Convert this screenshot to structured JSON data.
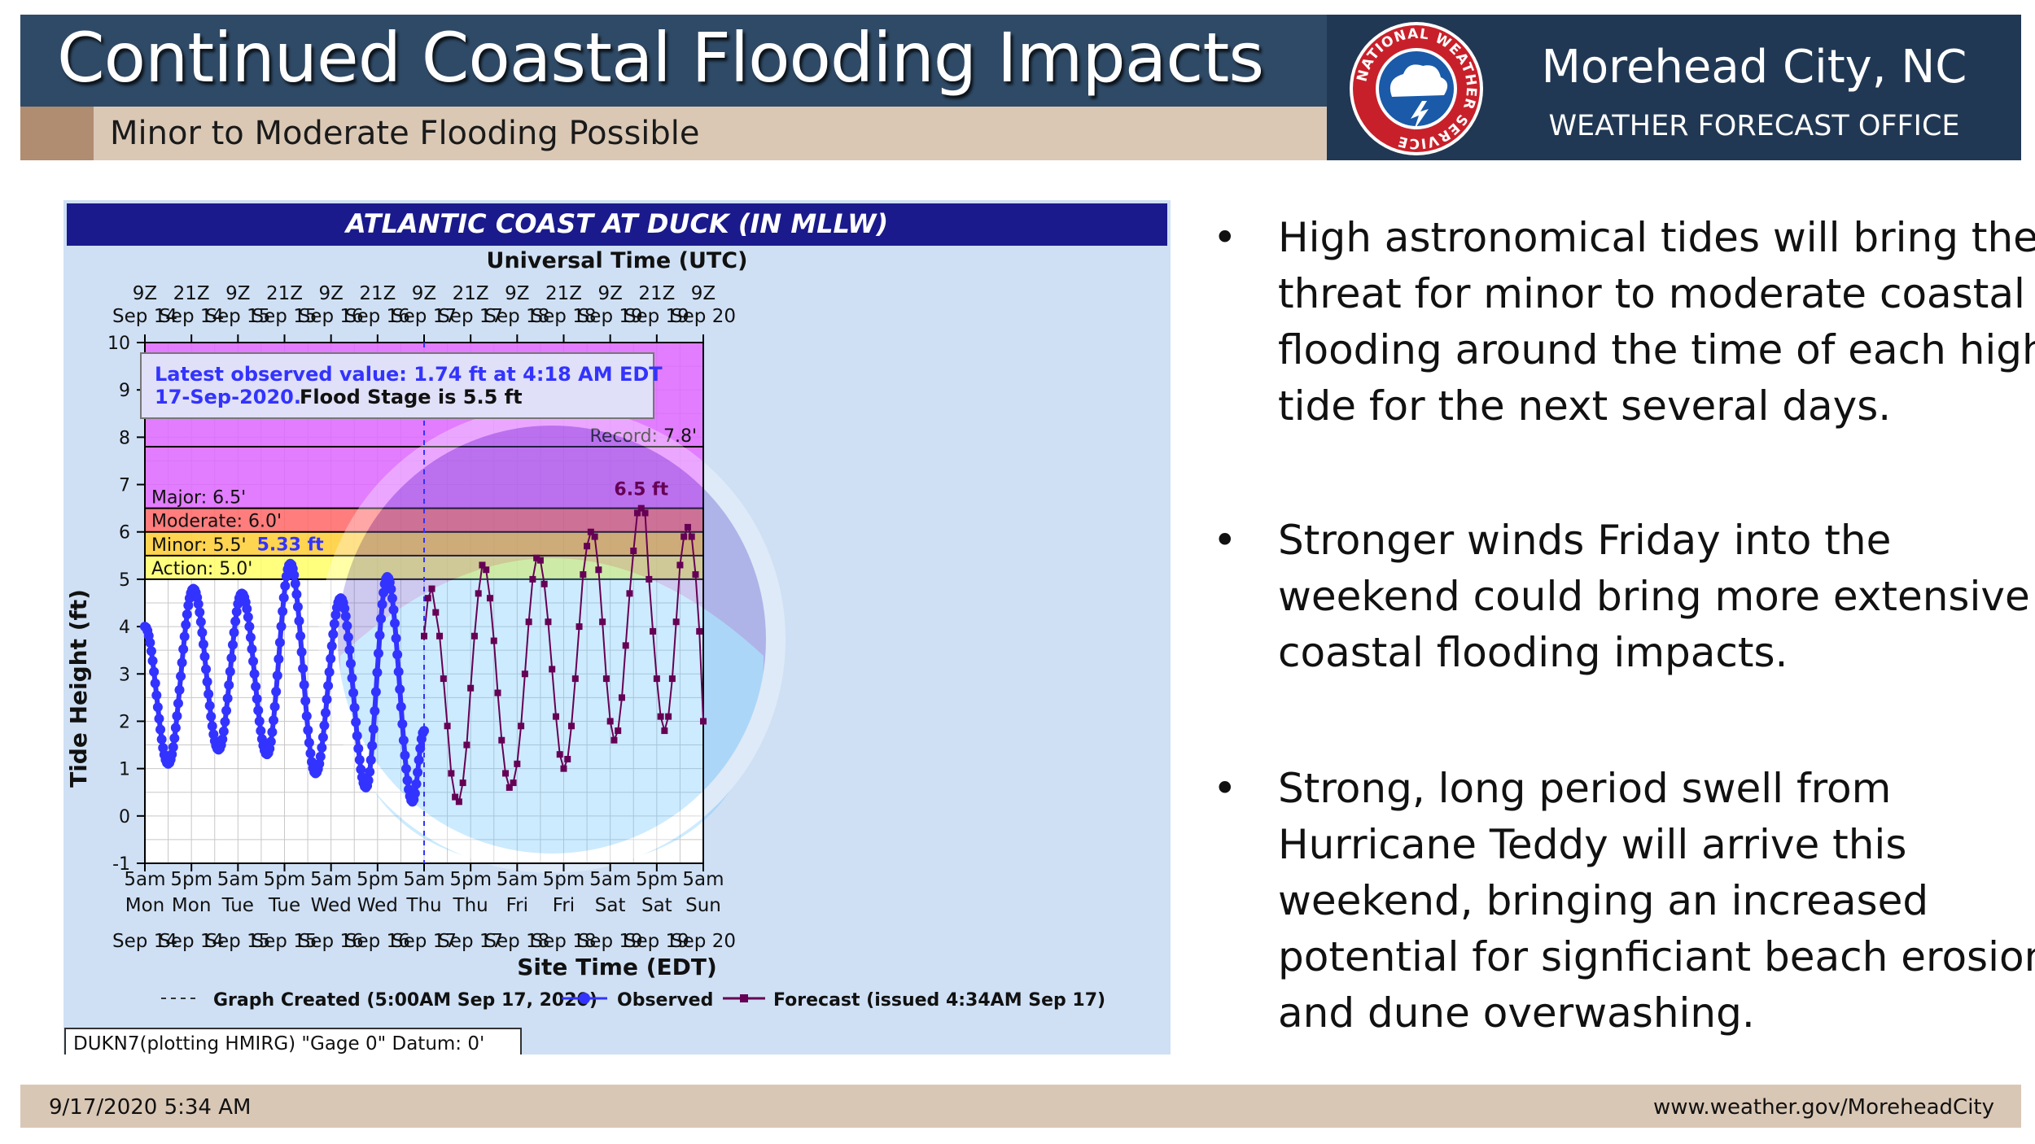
{
  "header": {
    "title": "Continued Coastal Flooding Impacts",
    "subtitle": "Minor to Moderate Flooding Possible",
    "office_city": "Morehead City, NC",
    "office_name": "WEATHER FORECAST OFFICE",
    "logo_text": "NATIONAL WEATHER SERVICE"
  },
  "chart_data": {
    "type": "line",
    "title": "ATLANTIC COAST AT DUCK (IN MLLW)",
    "top_axis_title": "Universal Time (UTC)",
    "top_ticks": [
      [
        "9Z",
        "Sep 14"
      ],
      [
        "21Z",
        "Sep 14"
      ],
      [
        "9Z",
        "Sep 15"
      ],
      [
        "21Z",
        "Sep 15"
      ],
      [
        "9Z",
        "Sep 16"
      ],
      [
        "21Z",
        "Sep 16"
      ],
      [
        "9Z",
        "Sep 17"
      ],
      [
        "21Z",
        "Sep 17"
      ],
      [
        "9Z",
        "Sep 18"
      ],
      [
        "21Z",
        "Sep 18"
      ],
      [
        "9Z",
        "Sep 19"
      ],
      [
        "21Z",
        "Sep 19"
      ],
      [
        "9Z",
        "Sep 20"
      ]
    ],
    "xlabel": "Site Time (EDT)",
    "bottom_ticks": [
      [
        "5am",
        "Mon",
        "Sep 14"
      ],
      [
        "5pm",
        "Mon",
        "Sep 14"
      ],
      [
        "5am",
        "Tue",
        "Sep 15"
      ],
      [
        "5pm",
        "Tue",
        "Sep 15"
      ],
      [
        "5am",
        "Wed",
        "Sep 16"
      ],
      [
        "5pm",
        "Wed",
        "Sep 16"
      ],
      [
        "5am",
        "Thu",
        "Sep 17"
      ],
      [
        "5pm",
        "Thu",
        "Sep 17"
      ],
      [
        "5am",
        "Fri",
        "Sep 18"
      ],
      [
        "5pm",
        "Fri",
        "Sep 18"
      ],
      [
        "5am",
        "Sat",
        "Sep 19"
      ],
      [
        "5pm",
        "Sat",
        "Sep 19"
      ],
      [
        "5am",
        "Sun",
        "Sep 20"
      ]
    ],
    "ylabel": "Tide Height (ft)",
    "ylim": [
      -1,
      10
    ],
    "yticks": [
      -1,
      0,
      1,
      2,
      3,
      4,
      5,
      6,
      7,
      8,
      9,
      10
    ],
    "x_unit": "hours after 5am EDT Mon Sep 14",
    "xlim": [
      0,
      144
    ],
    "flood_stages": [
      {
        "label": "Action: 5.0'",
        "value": 5.0,
        "color": "#ffff66"
      },
      {
        "label": "Minor: 5.5'",
        "value": 5.5,
        "color": "#ffcc33"
      },
      {
        "label": "Moderate: 6.0'",
        "value": 6.0,
        "color": "#ff6666"
      },
      {
        "label": "Major: 6.5'",
        "value": 6.5,
        "color": "#dd66ff"
      }
    ],
    "record": {
      "label": "Record: 7.8'",
      "value": 7.8
    },
    "observed_extrema": [
      [
        0,
        4.0
      ],
      [
        6,
        1.1
      ],
      [
        12.5,
        4.8
      ],
      [
        19,
        1.4
      ],
      [
        25,
        4.7
      ],
      [
        31.5,
        1.3
      ],
      [
        37.5,
        5.33
      ],
      [
        44,
        0.9
      ],
      [
        50.5,
        4.6
      ],
      [
        57,
        0.6
      ],
      [
        62.5,
        5.05
      ],
      [
        69,
        0.3
      ],
      [
        72,
        1.8
      ]
    ],
    "forecast_points": [
      [
        72,
        3.8
      ],
      [
        73,
        4.6
      ],
      [
        74,
        4.8
      ],
      [
        75,
        4.3
      ],
      [
        76,
        3.8
      ],
      [
        77,
        2.9
      ],
      [
        78,
        1.9
      ],
      [
        79,
        0.9
      ],
      [
        80,
        0.4
      ],
      [
        81,
        0.3
      ],
      [
        82,
        0.7
      ],
      [
        83,
        1.5
      ],
      [
        84,
        2.7
      ],
      [
        85,
        3.8
      ],
      [
        86,
        4.7
      ],
      [
        87,
        5.3
      ],
      [
        88,
        5.2
      ],
      [
        89,
        4.6
      ],
      [
        90,
        3.7
      ],
      [
        91,
        2.6
      ],
      [
        92,
        1.6
      ],
      [
        93,
        0.9
      ],
      [
        94,
        0.6
      ],
      [
        95,
        0.7
      ],
      [
        96,
        1.1
      ],
      [
        97,
        1.9
      ],
      [
        98,
        3.0
      ],
      [
        99,
        4.1
      ],
      [
        100,
        5.0
      ],
      [
        101,
        5.45
      ],
      [
        102,
        5.4
      ],
      [
        103,
        4.9
      ],
      [
        104,
        4.1
      ],
      [
        105,
        3.1
      ],
      [
        106,
        2.1
      ],
      [
        107,
        1.3
      ],
      [
        108,
        1.0
      ],
      [
        109,
        1.2
      ],
      [
        110,
        1.9
      ],
      [
        111,
        2.9
      ],
      [
        112,
        4.0
      ],
      [
        113,
        5.1
      ],
      [
        114,
        5.7
      ],
      [
        115,
        6.0
      ],
      [
        116,
        5.9
      ],
      [
        117,
        5.2
      ],
      [
        118,
        4.1
      ],
      [
        119,
        2.9
      ],
      [
        120,
        2.0
      ],
      [
        121,
        1.6
      ],
      [
        122,
        1.8
      ],
      [
        123,
        2.5
      ],
      [
        124,
        3.6
      ],
      [
        125,
        4.7
      ],
      [
        126,
        5.6
      ],
      [
        127,
        6.4
      ],
      [
        128,
        6.5
      ],
      [
        129,
        6.4
      ],
      [
        130,
        5.0
      ],
      [
        131,
        3.9
      ],
      [
        132,
        2.9
      ],
      [
        133,
        2.1
      ],
      [
        134,
        1.8
      ],
      [
        135,
        2.1
      ],
      [
        136,
        2.9
      ],
      [
        137,
        4.1
      ],
      [
        138,
        5.3
      ],
      [
        139,
        5.9
      ],
      [
        140,
        6.1
      ],
      [
        141,
        5.9
      ],
      [
        142,
        5.1
      ],
      [
        143,
        3.9
      ],
      [
        144,
        2.0
      ]
    ],
    "observed_peak_label": "5.33 ft",
    "forecast_peak_label": "6.5 ft",
    "info_box": {
      "line1": "Latest observed value: 1.74 ft at 4:18 AM EDT",
      "line2a": "17-Sep-2020.",
      "line2b": "Flood Stage is 5.5 ft"
    },
    "legend": {
      "created": "Graph Created (5:00AM Sep 17, 2020)",
      "observed": "Observed",
      "forecast": "Forecast (issued 4:34AM Sep 17)"
    },
    "footnote": "DUKN7(plotting HMIRG) \"Gage 0\" Datum: 0'",
    "colors": {
      "observed": "#3333ff",
      "forecast": "#660055",
      "title_bg": "#1a1a8c"
    }
  },
  "bullets": [
    "High astronomical tides will bring the threat for minor to moderate coastal flooding around the time of each high tide for the next several days.",
    "Stronger winds Friday into the weekend could bring more extensive coastal flooding impacts.",
    "Strong, long period swell from Hurricane Teddy will arrive this weekend, bringing an increased potential for signficiant beach erosion and dune overwashing."
  ],
  "footer": {
    "datetime": "9/17/2020 5:34 AM",
    "url": "www.weather.gov/MoreheadCity"
  }
}
